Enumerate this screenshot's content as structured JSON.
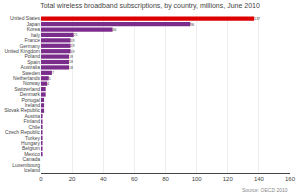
{
  "chart_data": {
    "type": "bar",
    "orientation": "horizontal",
    "title": "Total wireless broadband subscriptions, by country, millions, June 2010",
    "annotations": [
      "Source: OECD 2010"
    ],
    "categories": [
      "United States",
      "Japan",
      "Korea",
      "Italy",
      "France",
      "Germany",
      "United Kingdom",
      "Poland",
      "Spain",
      "Australia",
      "Sweden",
      "Netherlands",
      "Norway",
      "Switzerland",
      "Denmark",
      "Portugal",
      "Ireland",
      "Slovak Republic",
      "Austria",
      "Finland",
      "Chile",
      "Czech Republic",
      "Turkey",
      "Hungary",
      "Belgium",
      "Mexico",
      "Canada",
      "Luxembourg",
      "Iceland"
    ],
    "values": [
      137,
      96,
      46,
      21,
      19,
      19,
      19,
      18,
      18,
      18,
      7,
      5,
      4,
      3,
      3,
      2,
      2,
      2,
      1,
      1,
      1,
      1,
      1,
      1,
      1,
      1,
      0,
      0,
      0
    ],
    "value_labels": [
      "137",
      "96",
      "46",
      "21",
      "19",
      "19",
      "19",
      "18",
      "18",
      "18",
      "7",
      "5",
      "4",
      null,
      null,
      null,
      null,
      null,
      null,
      null,
      null,
      null,
      null,
      null,
      null,
      null,
      null,
      null,
      null
    ],
    "data_labels": true,
    "colors": [
      "#dd0000",
      "#7b2d8b",
      "#7b2d8b",
      "#7b2d8b",
      "#7b2d8b",
      "#7b2d8b",
      "#7b2d8b",
      "#7b2d8b",
      "#7b2d8b",
      "#7b2d8b",
      "#7b2d8b",
      "#7b2d8b",
      "#7b2d8b",
      "#7b2d8b",
      "#7b2d8b",
      "#7b2d8b",
      "#7b2d8b",
      "#7b2d8b",
      "#7b2d8b",
      "#7b2d8b",
      "#7b2d8b",
      "#7b2d8b",
      "#7b2d8b",
      "#7b2d8b",
      "#7b2d8b",
      "#7b2d8b",
      "#7b2d8b",
      "#7b2d8b",
      "#7b2d8b"
    ],
    "xlim": [
      0,
      160
    ],
    "xticks": [
      0,
      20,
      40,
      60,
      80,
      100,
      120,
      140,
      160
    ],
    "grid": true
  }
}
